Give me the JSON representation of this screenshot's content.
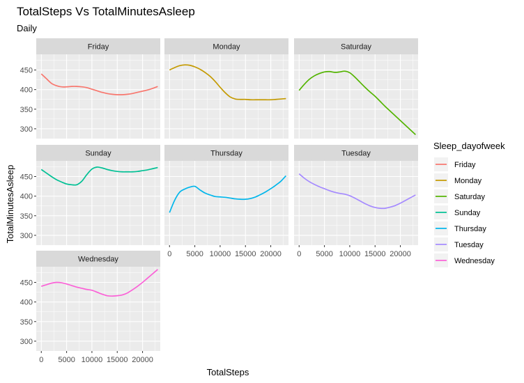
{
  "chart_data": {
    "type": "line",
    "title": "TotalSteps Vs TotalMinutesAsleep",
    "subtitle": "Daily",
    "xlabel": "TotalSteps",
    "ylabel": "TotalMinutesAsleep",
    "xlim": [
      -1000,
      23500
    ],
    "ylim": [
      275,
      490
    ],
    "x_ticks": [
      0,
      5000,
      10000,
      15000,
      20000
    ],
    "x_tick_labels": [
      "0",
      "5000",
      "10000",
      "15000",
      "20000"
    ],
    "y_ticks": [
      300,
      350,
      400,
      450
    ],
    "y_tick_labels": [
      "300",
      "350",
      "400",
      "450"
    ],
    "grid": true,
    "legend_title": "Sleep_dayofweek",
    "legend_position": "right",
    "series": [
      {
        "name": "Friday",
        "color": "#F8766D",
        "x": [
          0,
          1000,
          2000,
          3000,
          4000,
          5000,
          6000,
          7000,
          8000,
          9000,
          10000,
          11000,
          12000,
          13000,
          14000,
          15000,
          16000,
          17000,
          18000,
          19000,
          20000,
          21000,
          22000,
          23000
        ],
        "values": [
          440,
          428,
          416,
          410,
          407,
          407,
          408,
          408,
          407,
          405,
          401,
          397,
          393,
          390,
          388,
          387,
          387,
          388,
          390,
          393,
          396,
          399,
          403,
          408
        ]
      },
      {
        "name": "Monday",
        "color": "#C49A00",
        "x": [
          0,
          1000,
          2000,
          3000,
          4000,
          5000,
          6000,
          7000,
          8000,
          9000,
          10000,
          11000,
          12000,
          13000,
          14000,
          15000,
          16000,
          17000,
          18000,
          19000,
          20000,
          21000,
          22000,
          23000
        ],
        "values": [
          450,
          456,
          461,
          463,
          462,
          458,
          452,
          444,
          434,
          421,
          406,
          392,
          381,
          376,
          375,
          375,
          374,
          374,
          374,
          374,
          374,
          375,
          376,
          377
        ]
      },
      {
        "name": "Saturday",
        "color": "#53B400",
        "x": [
          0,
          1000,
          2000,
          3000,
          4000,
          5000,
          6000,
          7000,
          8000,
          9000,
          10000,
          11000,
          12000,
          13000,
          14000,
          15000,
          16000,
          17000,
          18000,
          19000,
          20000,
          21000,
          22000,
          23000
        ],
        "values": [
          398,
          413,
          426,
          435,
          441,
          445,
          446,
          444,
          445,
          447,
          443,
          432,
          419,
          406,
          394,
          383,
          370,
          357,
          345,
          333,
          321,
          309,
          297,
          285
        ]
      },
      {
        "name": "Sunday",
        "color": "#00C094",
        "x": [
          0,
          1000,
          2000,
          3000,
          4000,
          5000,
          6000,
          7000,
          8000,
          9000,
          10000,
          11000,
          12000,
          13000,
          14000,
          15000,
          16000,
          17000,
          18000,
          19000,
          20000,
          21000,
          22000,
          23000
        ],
        "values": [
          468,
          459,
          450,
          442,
          436,
          431,
          429,
          429,
          438,
          455,
          469,
          474,
          472,
          468,
          465,
          463,
          462,
          462,
          462,
          463,
          465,
          467,
          470,
          473
        ]
      },
      {
        "name": "Thursday",
        "color": "#00B6EB",
        "x": [
          0,
          1000,
          2000,
          3000,
          4000,
          5000,
          6000,
          7000,
          8000,
          9000,
          10000,
          11000,
          12000,
          13000,
          14000,
          15000,
          16000,
          17000,
          18000,
          19000,
          20000,
          21000,
          22000,
          23000
        ],
        "values": [
          358,
          389,
          410,
          418,
          423,
          425,
          416,
          408,
          403,
          399,
          398,
          397,
          395,
          393,
          392,
          392,
          394,
          398,
          404,
          411,
          419,
          428,
          438,
          452
        ]
      },
      {
        "name": "Tuesday",
        "color": "#A58AFF",
        "x": [
          0,
          1000,
          2000,
          3000,
          4000,
          5000,
          6000,
          7000,
          8000,
          9000,
          10000,
          11000,
          12000,
          13000,
          14000,
          15000,
          16000,
          17000,
          18000,
          19000,
          20000,
          21000,
          22000,
          23000
        ],
        "values": [
          457,
          446,
          437,
          430,
          424,
          419,
          414,
          410,
          407,
          405,
          401,
          395,
          388,
          381,
          375,
          371,
          369,
          369,
          372,
          376,
          382,
          389,
          396,
          403
        ]
      },
      {
        "name": "Wednesday",
        "color": "#FB61D7",
        "x": [
          0,
          1000,
          2000,
          3000,
          4000,
          5000,
          6000,
          7000,
          8000,
          9000,
          10000,
          11000,
          12000,
          13000,
          14000,
          15000,
          16000,
          17000,
          18000,
          19000,
          20000,
          21000,
          22000,
          23000
        ],
        "values": [
          440,
          444,
          448,
          450,
          449,
          446,
          442,
          438,
          435,
          432,
          430,
          425,
          420,
          416,
          415,
          416,
          418,
          423,
          431,
          440,
          450,
          461,
          472,
          483
        ]
      }
    ]
  }
}
